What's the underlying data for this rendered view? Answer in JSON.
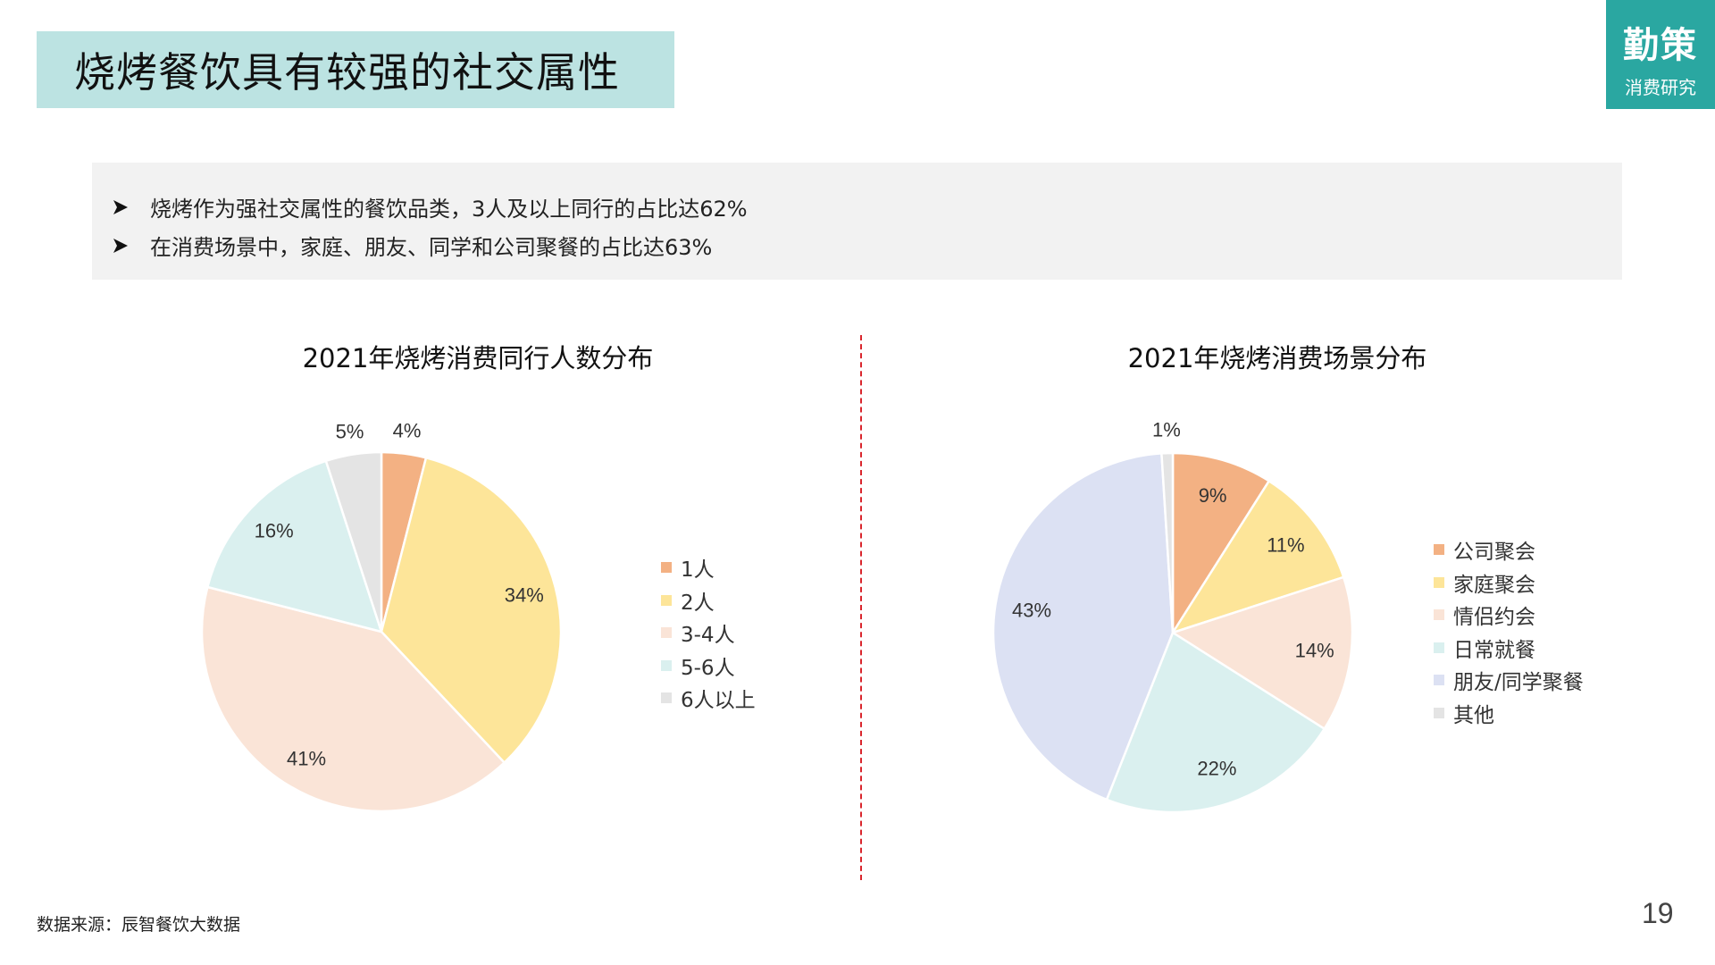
{
  "slide": {
    "title": "烧烤餐饮具有较强的社交属性",
    "brand_main": "勤策",
    "brand_sub": "消费研究",
    "bullets": [
      "烧烤作为强社交属性的餐饮品类，3人及以上同行的占比达62%",
      "在消费场景中，家庭、朋友、同学和公司聚餐的占比达63%"
    ],
    "source": "数据来源：辰智餐饮大数据",
    "page_number": "19",
    "divider_color": "#d9262d"
  },
  "chart_data": [
    {
      "type": "pie",
      "title": "2021年烧烤消费同行人数分布",
      "categories": [
        "1人",
        "2人",
        "3-4人",
        "5-6人",
        "6人以上"
      ],
      "values": [
        4,
        34,
        41,
        16,
        5
      ],
      "labels": [
        "4%",
        "34%",
        "41%",
        "16%",
        "5%"
      ],
      "colors": [
        "#f3b183",
        "#fde599",
        "#fae4d7",
        "#daf0ef",
        "#e4e4e4"
      ],
      "legend": "right"
    },
    {
      "type": "pie",
      "title": "2021年烧烤消费场景分布",
      "categories": [
        "公司聚会",
        "家庭聚会",
        "情侣约会",
        "日常就餐",
        "朋友/同学聚餐",
        "其他"
      ],
      "values": [
        9,
        11,
        14,
        22,
        43,
        1
      ],
      "labels": [
        "9%",
        "11%",
        "14%",
        "22%",
        "43%",
        "1%"
      ],
      "colors": [
        "#f3b183",
        "#fde599",
        "#fae4d7",
        "#daf0ef",
        "#dce1f3",
        "#e4e4e4"
      ],
      "legend": "right"
    }
  ]
}
